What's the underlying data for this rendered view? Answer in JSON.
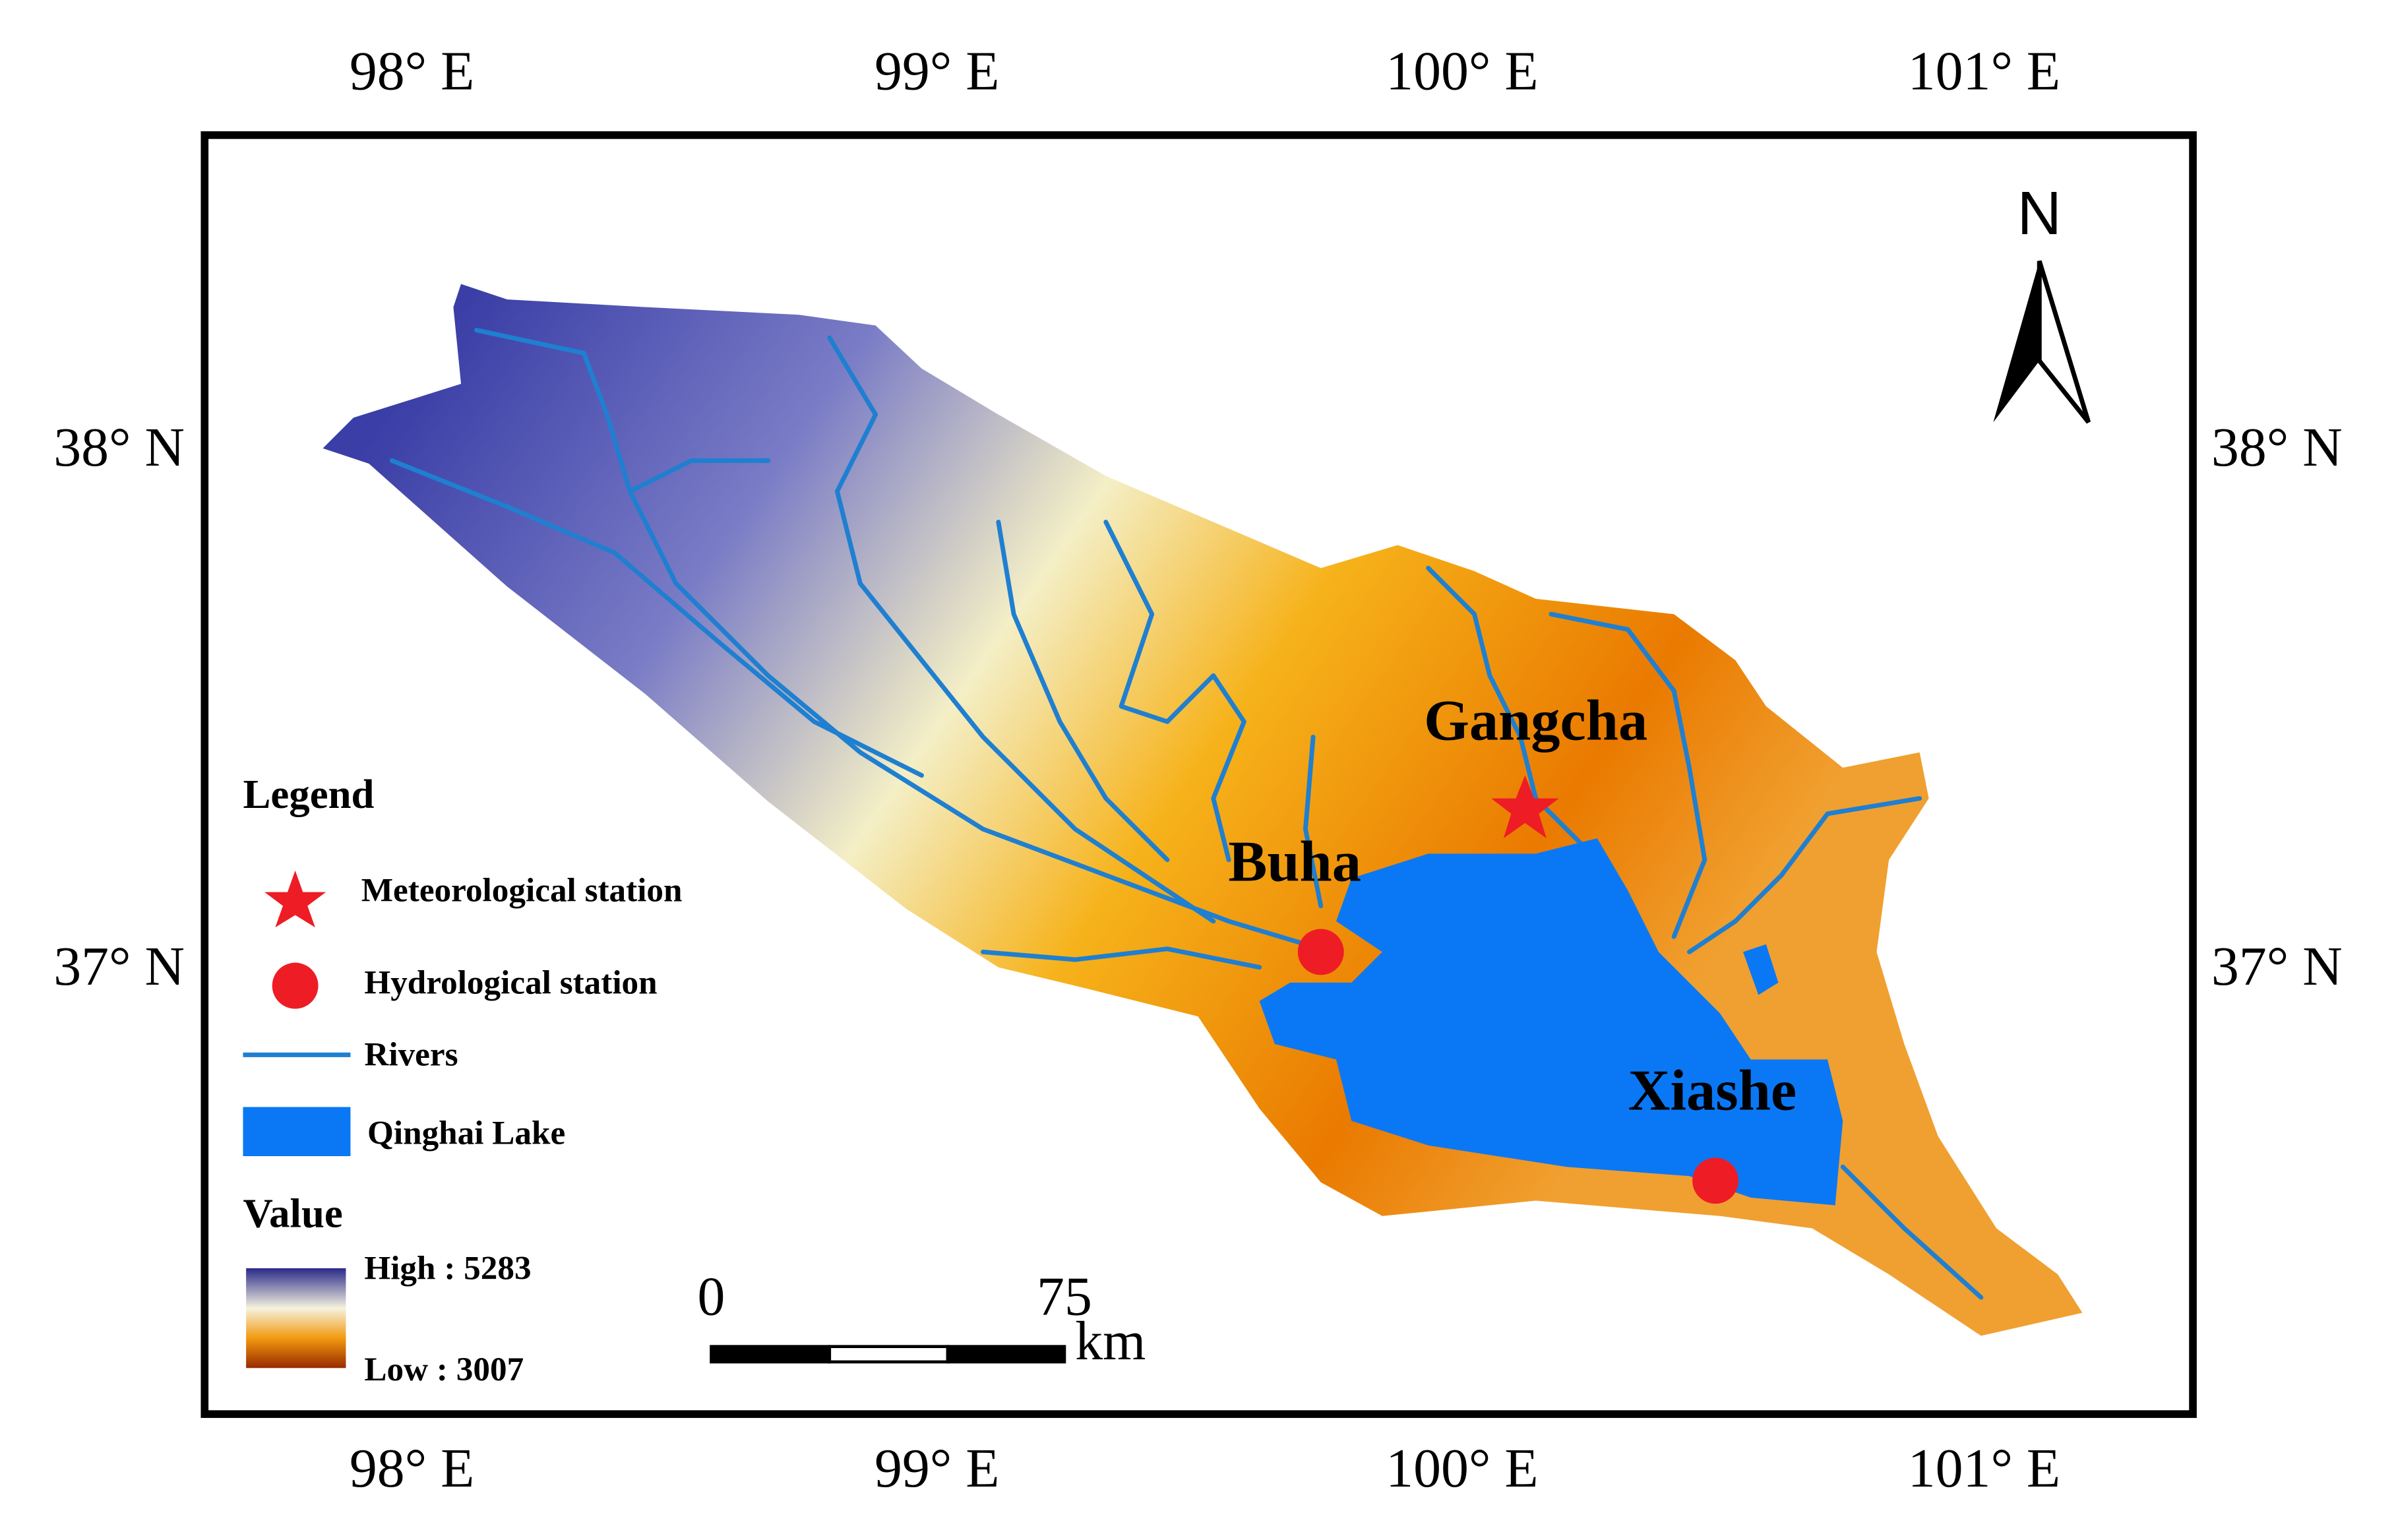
{
  "graticule": {
    "longitudes": [
      "98° E",
      "99° E",
      "100° E",
      "101° E"
    ],
    "latitudes": [
      "38° N",
      "37° N"
    ]
  },
  "north_arrow": {
    "label": "N"
  },
  "stations": [
    {
      "label": "Gangcha"
    },
    {
      "label": "Buha"
    },
    {
      "label": "Xiashe"
    }
  ],
  "legend": {
    "title": "Legend",
    "items": [
      "Meteorological station",
      "Hydrological station",
      "Rivers",
      "Qinghai Lake"
    ],
    "value_title": "Value",
    "high": "High : 5283",
    "low": "Low : 3007"
  },
  "scale_bar": {
    "labels": [
      "0",
      "75"
    ],
    "unit": "km"
  }
}
